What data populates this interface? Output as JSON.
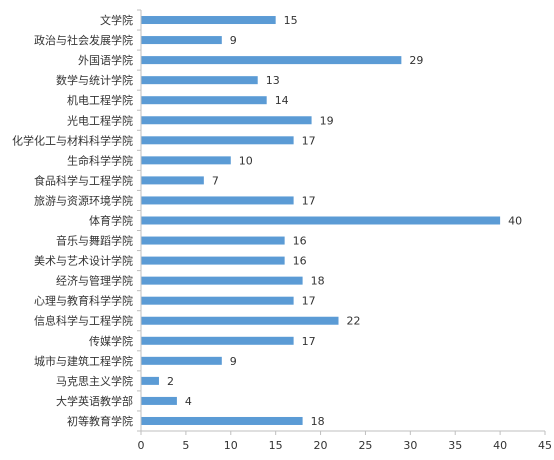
{
  "chart_data": {
    "type": "bar",
    "orientation": "horizontal",
    "title": "",
    "xlabel": "",
    "ylabel": "",
    "xlim": [
      0,
      45
    ],
    "x_ticks": [
      0,
      5,
      10,
      15,
      20,
      25,
      30,
      35,
      40,
      45
    ],
    "grid": false,
    "legend": "none",
    "bar_color": "#5B9BD5",
    "categories": [
      "文学院",
      "政治与社会发展学院",
      "外国语学院",
      "数学与统计学院",
      "机电工程学院",
      "光电工程学院",
      "化学化工与材料科学学院",
      "生命科学学院",
      "食品科学与工程学院",
      "旅游与资源环境学院",
      "体育学院",
      "音乐与舞蹈学院",
      "美术与艺术设计学院",
      "经济与管理学院",
      "心理与教育科学学院",
      "信息科学与工程学院",
      "传媒学院",
      "城市与建筑工程学院",
      "马克思主义学院",
      "大学英语教学部",
      "初等教育学院"
    ],
    "values": [
      15,
      9,
      29,
      13,
      14,
      19,
      17,
      10,
      7,
      17,
      40,
      16,
      16,
      18,
      17,
      22,
      17,
      9,
      2,
      4,
      18
    ]
  }
}
